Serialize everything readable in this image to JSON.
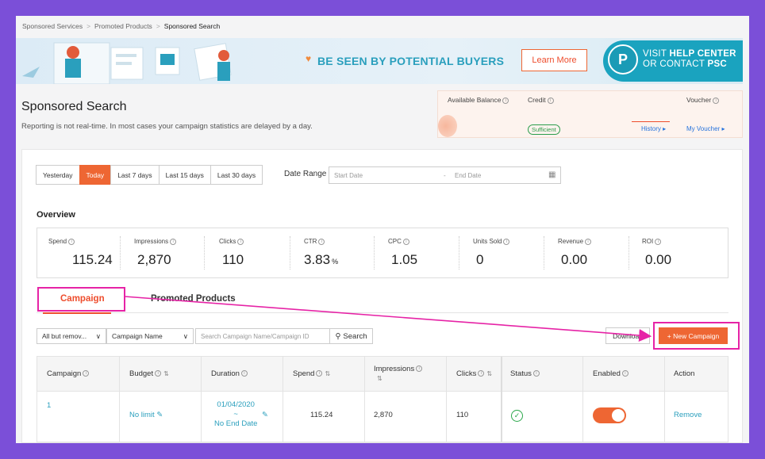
{
  "breadcrumb": [
    "Sponsored Services",
    "Promoted Products",
    "Sponsored Search"
  ],
  "banner": {
    "headline": "BE SEEN BY POTENTIAL BUYERS",
    "learn_more": "Learn More",
    "psc_logo": "P",
    "psc_line1_prefix": "VISIT ",
    "psc_line1_bold": "HELP CENTER",
    "psc_line2_prefix": "OR CONTACT ",
    "psc_line2_bold": "PSC"
  },
  "page": {
    "title": "Sponsored Search",
    "subtitle": "Reporting is not real-time. In most cases your campaign statistics are delayed by a day."
  },
  "balance": {
    "available_label": "Available Balance",
    "credit_label": "Credit",
    "voucher_label": "Voucher",
    "sufficient": "Sufficient",
    "history": "History ▸",
    "my_voucher": "My Voucher ▸"
  },
  "date_filter": {
    "buttons": [
      "Yesterday",
      "Today",
      "Last 7 days",
      "Last 15 days",
      "Last 30 days"
    ],
    "active": "Today",
    "range_label": "Date Range",
    "start_placeholder": "Start Date",
    "separator": "-",
    "end_placeholder": "End Date"
  },
  "overview": {
    "title": "Overview",
    "metrics": [
      {
        "label": "Spend",
        "value": "115.24",
        "unit": ""
      },
      {
        "label": "Impressions",
        "value": "2,870",
        "unit": ""
      },
      {
        "label": "Clicks",
        "value": "110",
        "unit": ""
      },
      {
        "label": "CTR",
        "value": "3.83",
        "unit": "%"
      },
      {
        "label": "CPC",
        "value": "1.05",
        "unit": ""
      },
      {
        "label": "Units Sold",
        "value": "0",
        "unit": ""
      },
      {
        "label": "Revenue",
        "value": "0.00",
        "unit": ""
      },
      {
        "label": "ROI",
        "value": "0.00",
        "unit": ""
      }
    ]
  },
  "tabs": {
    "campaign": "Campaign",
    "promoted_products": "Promoted Products"
  },
  "filters": {
    "status_select": "All but remov...",
    "field_select": "Campaign Name",
    "search_placeholder": "Search Campaign Name/Campaign ID",
    "search_button": "Search"
  },
  "actions": {
    "download": "Download",
    "new_campaign": "+ New Campaign"
  },
  "table": {
    "headers": {
      "campaign": "Campaign",
      "budget": "Budget",
      "duration": "Duration",
      "spend": "Spend",
      "impressions": "Impressions",
      "clicks": "Clicks",
      "status": "Status",
      "enabled": "Enabled",
      "action": "Action"
    },
    "rows": [
      {
        "campaign": "1",
        "budget": "No limit",
        "duration_start": "01/04/2020",
        "duration_sep": "~",
        "duration_end": "No End Date",
        "spend": "115.24",
        "impressions": "2,870",
        "clicks": "110",
        "status": "active",
        "enabled": true,
        "action": "Remove"
      }
    ]
  },
  "colors": {
    "accent": "#ee6633",
    "highlight": "#e623a6",
    "link": "#2a9fbd",
    "background": "#7b4fd8"
  }
}
